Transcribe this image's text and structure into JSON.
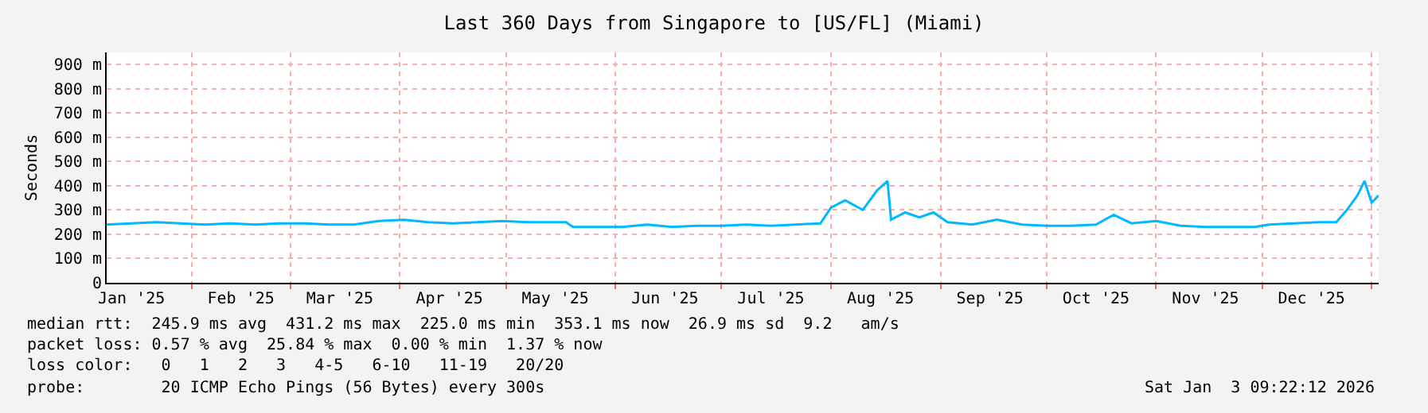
{
  "chart_data": {
    "type": "line",
    "title": "Last 360 Days from Singapore to [US/FL] (Miami)",
    "ylabel": "Seconds",
    "x": [
      "2025-01-08",
      "2025-01-15",
      "2025-01-22",
      "2025-01-29",
      "2025-02-05",
      "2025-02-12",
      "2025-02-19",
      "2025-02-26",
      "2025-03-05",
      "2025-03-12",
      "2025-03-19",
      "2025-03-26",
      "2025-04-02",
      "2025-04-09",
      "2025-04-16",
      "2025-04-23",
      "2025-04-30",
      "2025-05-07",
      "2025-05-14",
      "2025-05-18",
      "2025-05-20",
      "2025-05-27",
      "2025-06-03",
      "2025-06-10",
      "2025-06-17",
      "2025-06-24",
      "2025-07-01",
      "2025-07-08",
      "2025-07-15",
      "2025-07-22",
      "2025-07-29",
      "2025-08-01",
      "2025-08-05",
      "2025-08-10",
      "2025-08-14",
      "2025-08-17",
      "2025-08-18",
      "2025-08-22",
      "2025-08-26",
      "2025-08-30",
      "2025-09-03",
      "2025-09-10",
      "2025-09-17",
      "2025-09-24",
      "2025-10-01",
      "2025-10-08",
      "2025-10-15",
      "2025-10-20",
      "2025-10-25",
      "2025-11-01",
      "2025-11-08",
      "2025-11-15",
      "2025-11-22",
      "2025-11-29",
      "2025-12-03",
      "2025-12-10",
      "2025-12-17",
      "2025-12-22",
      "2025-12-25",
      "2025-12-28",
      "2025-12-30",
      "2026-01-01",
      "2026-01-03"
    ],
    "series": [
      {
        "color": "#00b8ff",
        "values": [
          240,
          245,
          250,
          245,
          240,
          245,
          240,
          245,
          245,
          240,
          240,
          255,
          260,
          250,
          245,
          250,
          255,
          250,
          250,
          250,
          230,
          230,
          230,
          240,
          230,
          235,
          235,
          240,
          235,
          240,
          245,
          310,
          340,
          300,
          380,
          420,
          260,
          290,
          270,
          290,
          250,
          240,
          260,
          240,
          235,
          235,
          240,
          280,
          245,
          255,
          235,
          230,
          230,
          230,
          240,
          245,
          250,
          250,
          300,
          360,
          420,
          330,
          360
        ]
      }
    ],
    "xlim": [
      "2025-01-08",
      "2026-01-03"
    ],
    "xticks": [
      {
        "value": "2025-01-15",
        "label": "Jan '25"
      },
      {
        "value": "2025-02-01",
        "label": null
      },
      {
        "value": "2025-02-15",
        "label": "Feb '25"
      },
      {
        "value": "2025-03-01",
        "label": null
      },
      {
        "value": "2025-03-15",
        "label": "Mar '25"
      },
      {
        "value": "2025-04-01",
        "label": null
      },
      {
        "value": "2025-04-15",
        "label": "Apr '25"
      },
      {
        "value": "2025-05-01",
        "label": null
      },
      {
        "value": "2025-05-15",
        "label": "May '25"
      },
      {
        "value": "2025-06-01",
        "label": null
      },
      {
        "value": "2025-06-15",
        "label": "Jun '25"
      },
      {
        "value": "2025-07-01",
        "label": null
      },
      {
        "value": "2025-07-15",
        "label": "Jul '25"
      },
      {
        "value": "2025-08-01",
        "label": null
      },
      {
        "value": "2025-08-15",
        "label": "Aug '25"
      },
      {
        "value": "2025-09-01",
        "label": null
      },
      {
        "value": "2025-09-15",
        "label": "Sep '25"
      },
      {
        "value": "2025-10-01",
        "label": null
      },
      {
        "value": "2025-10-15",
        "label": "Oct '25"
      },
      {
        "value": "2025-11-01",
        "label": null
      },
      {
        "value": "2025-11-15",
        "label": "Nov '25"
      },
      {
        "value": "2025-12-01",
        "label": null
      },
      {
        "value": "2025-12-15",
        "label": "Dec '25"
      },
      {
        "value": "2026-01-01",
        "label": null
      }
    ],
    "ylim": [
      0,
      950
    ],
    "yticks": [
      0,
      {
        "value": 100,
        "label": "100 m"
      },
      {
        "value": 200,
        "label": "200 m"
      },
      {
        "value": 300,
        "label": "300 m"
      },
      {
        "value": 400,
        "label": "400 m"
      },
      {
        "value": 500,
        "label": "500 m"
      },
      {
        "value": 600,
        "label": "600 m"
      },
      {
        "value": 700,
        "label": "700 m"
      },
      {
        "value": 800,
        "label": "800 m"
      },
      {
        "value": 900,
        "label": "900 m"
      }
    ],
    "grid": true,
    "annotations": [
      "median rtt:  245.9 ms avg  431.2 ms max  225.0 ms min  353.1 ms now  26.9 ms sd  9.2   am/s",
      "packet loss: 0.57 % avg  25.84 % max  0.00 % min  1.37 % now",
      "loss color:   0   1   2   3   4-5   6-10   11-19   20/20",
      "probe:        20 ICMP Echo Pings (56 Bytes) every 300s",
      "Sat Jan  3 09:22:12 2026"
    ]
  }
}
